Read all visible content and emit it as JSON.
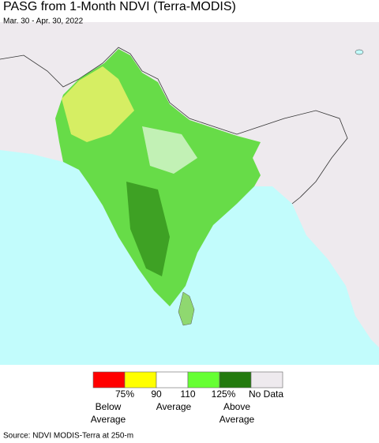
{
  "title": "PASG from 1-Month NDVI (Terra-MODIS)",
  "subtitle": "Mar. 30 - Apr. 30, 2022",
  "legend": {
    "colors": [
      "#ff0000",
      "#ffff00",
      "#ffffff",
      "#66ff33",
      "#237a0e",
      "#eeeaee"
    ],
    "tick_labels": [
      "75%",
      "90",
      "110",
      "125%",
      "No Data"
    ],
    "group_labels": [
      "Below\nAverage",
      "Average",
      "Above\nAverage"
    ]
  },
  "source": "Source: NDVI MODIS-Terra at 250-m"
}
